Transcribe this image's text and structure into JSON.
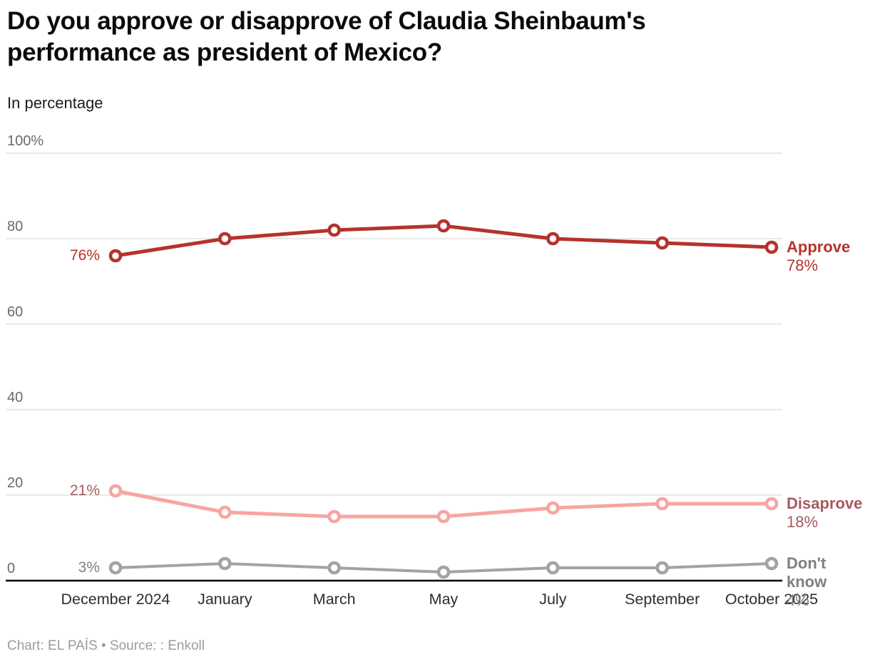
{
  "chart_data": {
    "type": "line",
    "title": "Do you approve or disapprove of Claudia Sheinbaum's performance as president of Mexico?",
    "subtitle": "In percentage",
    "categories": [
      "December 2024",
      "January",
      "March",
      "May",
      "July",
      "September",
      "October 2025"
    ],
    "series": [
      {
        "name": "Approve",
        "values": [
          76,
          80,
          82,
          83,
          80,
          79,
          78
        ],
        "line_color": "#b5332d",
        "label_color": "#b5332d",
        "first_value_label": "76%",
        "last_value_label": "78%"
      },
      {
        "name": "Disaprove",
        "values": [
          21,
          16,
          15,
          15,
          17,
          18,
          18
        ],
        "line_color": "#f7a5a2",
        "label_color": "#a55a5e",
        "first_value_label": "21%",
        "last_value_label": "18%"
      },
      {
        "name": "Don't know",
        "values": [
          3,
          4,
          3,
          2,
          3,
          3,
          4
        ],
        "line_color": "#a3a3a3",
        "label_color": "#7f7f7f",
        "first_value_label": "3%",
        "last_value_label": "4%"
      }
    ],
    "y_ticks": [
      {
        "label": "100%",
        "value": 100
      },
      {
        "label": "80",
        "value": 80
      },
      {
        "label": "60",
        "value": 60
      },
      {
        "label": "40",
        "value": 40
      },
      {
        "label": "20",
        "value": 20
      },
      {
        "label": "0",
        "value": 0
      }
    ],
    "ylim": [
      0,
      100
    ],
    "grid": true,
    "legend_position": "right-edge-labels",
    "xlabel": "",
    "ylabel": "",
    "axis_color": "#000000",
    "gridline_color": "#dcdcdc"
  },
  "footer": {
    "credit": "Chart: EL PAÍS • Source: : Enkoll"
  }
}
